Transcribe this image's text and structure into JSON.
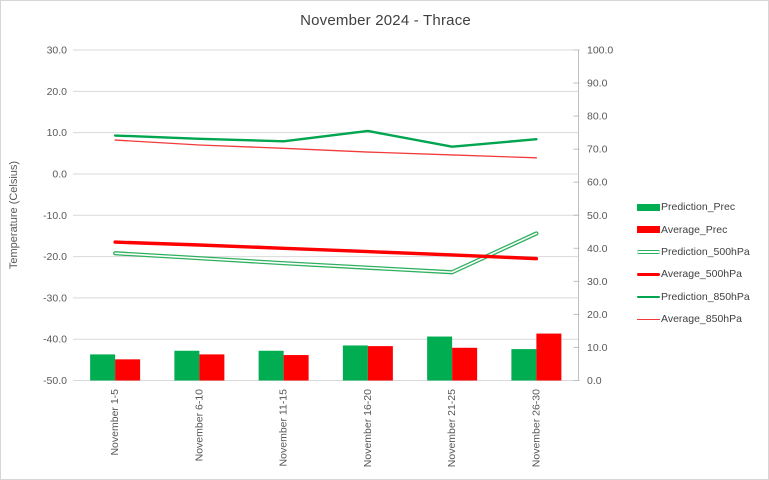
{
  "chart_data": {
    "type": "combo-bar-line",
    "title": "November 2024 - Thrace",
    "categories": [
      "November 1-5",
      "November 6-10",
      "November 11-15",
      "November 16-20",
      "November 21-25",
      "November 26-30"
    ],
    "bar_series": [
      {
        "name": "Prediction_Prec",
        "axis": "right",
        "color": "#00AD50",
        "values": [
          7.9,
          9.0,
          9.0,
          10.6,
          13.3,
          9.5
        ]
      },
      {
        "name": "Average_Prec",
        "axis": "right",
        "color": "#FF0000",
        "values": [
          6.4,
          7.9,
          7.7,
          10.4,
          9.9,
          14.2
        ]
      }
    ],
    "line_series": [
      {
        "name": "Prediction_500hPa",
        "axis": "left",
        "color": "#2FB05F",
        "style": "double",
        "width": 4.2,
        "values": [
          -19.2,
          -20.4,
          -21.6,
          -22.7,
          -23.8,
          -14.4
        ]
      },
      {
        "name": "Average_500hPa",
        "axis": "left",
        "color": "#FF0000",
        "style": "solid",
        "width": 3.4,
        "values": [
          -16.5,
          -17.2,
          -18.0,
          -18.8,
          -19.6,
          -20.5
        ]
      },
      {
        "name": "Prediction_850hPa",
        "axis": "left",
        "color": "#00A550",
        "style": "solid",
        "width": 2.4,
        "values": [
          9.3,
          8.5,
          7.9,
          10.4,
          6.6,
          8.4
        ]
      },
      {
        "name": "Average_850hPa",
        "axis": "left",
        "color": "#F23B3B",
        "style": "solid",
        "width": 1.3,
        "values": [
          8.2,
          7.0,
          6.2,
          5.3,
          4.6,
          3.9
        ]
      }
    ],
    "left_axis": {
      "title": "Temperature (Celsius)",
      "min": -50,
      "max": 30,
      "step": 10,
      "tick_labels": [
        "30.0",
        "20.0",
        "10.0",
        "0.0",
        "-10.0",
        "-20.0",
        "-30.0",
        "-40.0",
        "-50.0"
      ]
    },
    "right_axis": {
      "min": 0,
      "max": 100,
      "step": 10,
      "tick_labels": [
        "100.0",
        "90.0",
        "80.0",
        "70.0",
        "60.0",
        "50.0",
        "40.0",
        "30.0",
        "20.0",
        "10.0",
        "0.0"
      ]
    },
    "legend": [
      {
        "label": "Prediction_Prec",
        "swatch": "bar",
        "color": "#00AD50"
      },
      {
        "label": "Average_Prec",
        "swatch": "bar",
        "color": "#FF0000"
      },
      {
        "label": "Prediction_500hPa",
        "swatch": "line-double",
        "color": "#2FB05F"
      },
      {
        "label": "Average_500hPa",
        "swatch": "line-thick",
        "color": "#FF0000"
      },
      {
        "label": "Prediction_850hPa",
        "swatch": "line-medium",
        "color": "#00A550"
      },
      {
        "label": "Average_850hPa",
        "swatch": "line-thin",
        "color": "#F23B3B"
      }
    ],
    "grid_color": "#D9D9D9",
    "axis_line_color": "#BFBFBF",
    "tick_text_color": "#595959",
    "title_color": "#404040"
  }
}
